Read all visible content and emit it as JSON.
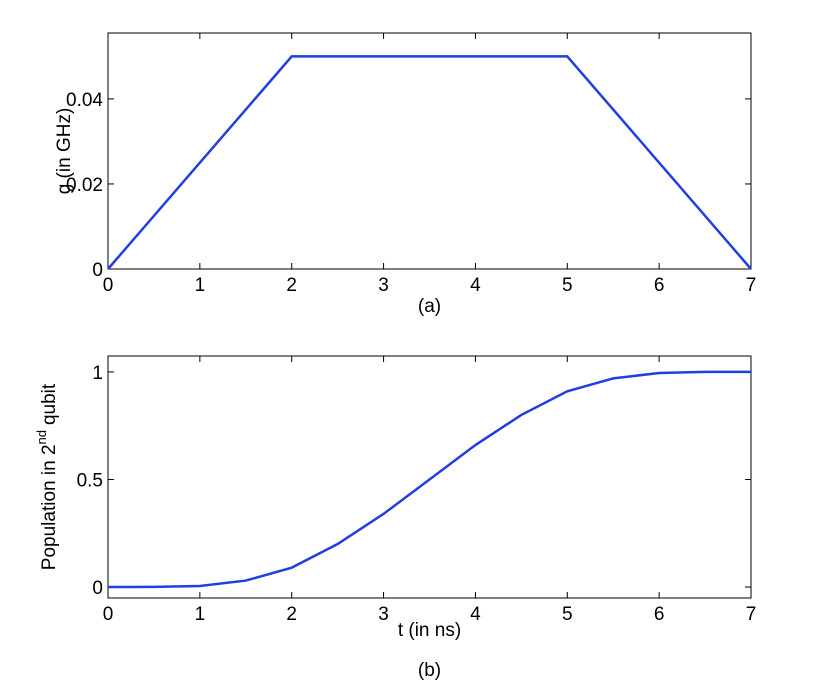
{
  "chart_data": [
    {
      "type": "line",
      "ylabel": [
        "g (in GHz)"
      ],
      "caption": "(a)",
      "x": [
        0,
        2,
        5,
        7
      ],
      "series": [
        {
          "color": "#1f3fe0",
          "values": [
            0,
            0.05,
            0.05,
            0
          ]
        }
      ],
      "xlim": [
        0,
        7
      ],
      "xticks": [
        0,
        1,
        2,
        3,
        4,
        5,
        6,
        7
      ],
      "ylim": [
        0,
        0.0555
      ],
      "yticks": [
        0,
        0.02,
        0.04
      ]
    },
    {
      "type": "line",
      "ylabel": [
        "Population in 2",
        "nd",
        "qubit"
      ],
      "xlabel": "t (in ns)",
      "caption": "(b)",
      "x": [
        0,
        0.5,
        1,
        1.5,
        2,
        2.5,
        3,
        3.5,
        4,
        4.5,
        5,
        5.5,
        6,
        6.5,
        7
      ],
      "series": [
        {
          "color": "#1f3fe0",
          "values": [
            0,
            0.0005,
            0.005,
            0.03,
            0.09,
            0.2,
            0.34,
            0.5,
            0.66,
            0.8,
            0.91,
            0.97,
            0.995,
            1,
            1
          ]
        }
      ],
      "xlim": [
        0,
        7
      ],
      "xticks": [
        0,
        1,
        2,
        3,
        4,
        5,
        6,
        7
      ],
      "ylim": [
        -0.051,
        1.074
      ],
      "yticks": [
        0,
        0.5,
        1
      ]
    }
  ]
}
